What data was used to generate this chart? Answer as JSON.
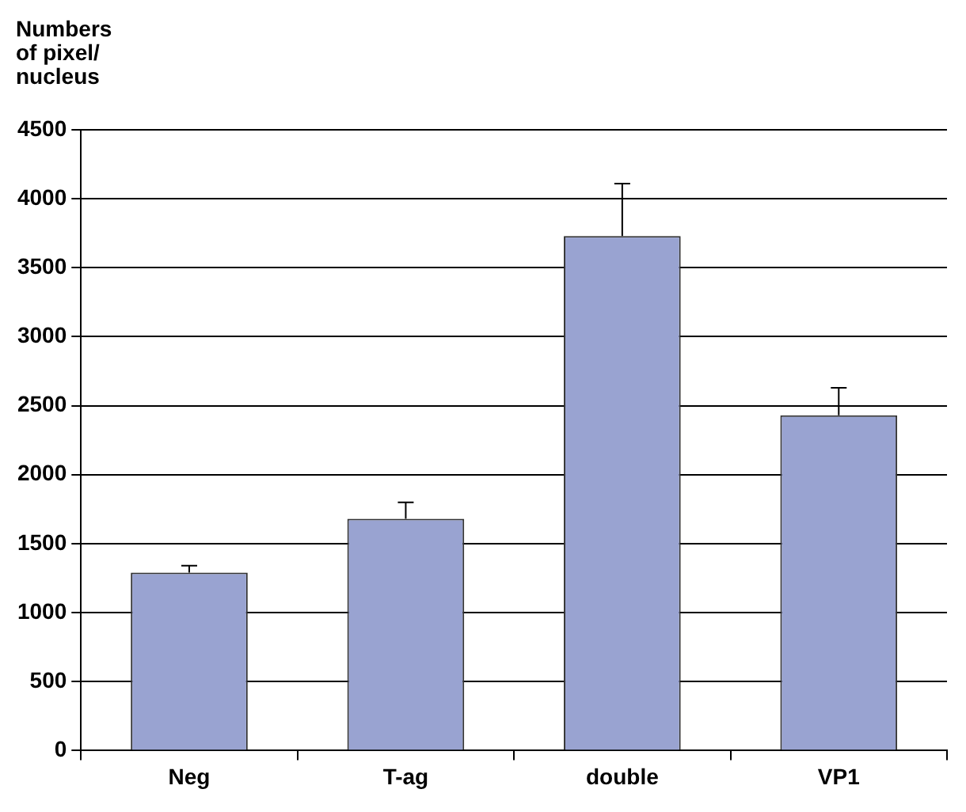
{
  "chart_data": {
    "type": "bar",
    "ylabel": "Numbers\nof pixel/\nnucleus",
    "categories": [
      "Neg",
      "T-ag",
      "double",
      "VP1"
    ],
    "values": [
      1290,
      1680,
      3730,
      2430
    ],
    "errors": [
      [
        1290,
        1340
      ],
      [
        1680,
        1800
      ],
      [
        3730,
        4110
      ],
      [
        2430,
        2630
      ]
    ],
    "color": "#99a3d1",
    "ylim": [
      0,
      4500
    ],
    "yticks": [
      0,
      500,
      1000,
      1500,
      2000,
      2500,
      3000,
      3500,
      4000,
      4500
    ],
    "grid": "y",
    "legend": false
  }
}
